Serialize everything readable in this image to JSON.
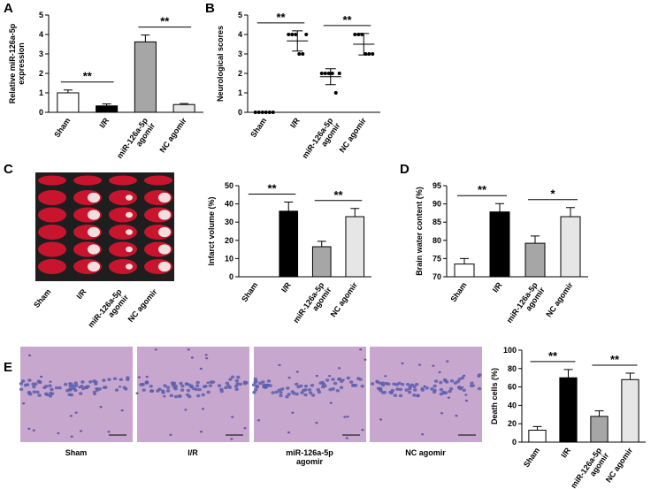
{
  "panels": [
    "A",
    "B",
    "C",
    "D",
    "E"
  ],
  "chart_data": [
    {
      "type": "bar",
      "ylabel": [
        "Relative miR-126a-5p",
        "expression"
      ],
      "categories": [
        "Sham",
        "I/R",
        [
          "miR-126a-5p",
          "agomir"
        ],
        "NC agomir"
      ],
      "values": [
        1.0,
        0.33,
        3.62,
        0.4
      ],
      "errors": [
        0.15,
        0.1,
        0.35,
        0.05
      ],
      "colors": [
        "#ffffff",
        "#000000",
        "#a6a6a6",
        "#e6e6e6"
      ],
      "ylim": [
        0,
        5
      ],
      "yticks": [
        0,
        1,
        2,
        3,
        4,
        5
      ],
      "annotations": [
        "**",
        "**"
      ]
    },
    {
      "type": "dotplot",
      "ylabel": [
        "Neurological scores"
      ],
      "categories": [
        "Sham",
        "I/R",
        [
          "miR-126a-5p",
          "agomir"
        ],
        "NC agomir"
      ],
      "points": [
        [
          0,
          0,
          0,
          0,
          0,
          0
        ],
        [
          4,
          4,
          4,
          3,
          3,
          4
        ],
        [
          2,
          2,
          2,
          2,
          1,
          2
        ],
        [
          4,
          4,
          4,
          3,
          3,
          3
        ]
      ],
      "means": [
        0,
        3.67,
        1.83,
        3.5
      ],
      "errors": [
        0,
        0.52,
        0.41,
        0.55
      ],
      "ylim": [
        0,
        5
      ],
      "yticks": [
        0,
        1,
        2,
        3,
        4,
        5
      ],
      "annotations": [
        "**",
        "**"
      ]
    },
    {
      "type": "bar",
      "ylabel": [
        "Infarct volume (%)"
      ],
      "categories": [
        "Sham",
        "I/R",
        [
          "miR-126a-5p",
          "agomir"
        ],
        "NC agomir"
      ],
      "values": [
        0,
        36,
        16.5,
        33
      ],
      "errors": [
        0,
        5,
        3,
        4.5
      ],
      "colors": [
        "#ffffff",
        "#000000",
        "#a6a6a6",
        "#e6e6e6"
      ],
      "ylim": [
        0,
        50
      ],
      "yticks": [
        0,
        10,
        20,
        30,
        40,
        50
      ],
      "annotations": [
        "**",
        "**"
      ]
    },
    {
      "type": "bar",
      "ylabel": [
        "Brain water content (%)"
      ],
      "categories": [
        "Sham",
        "I/R",
        [
          "miR-126a-5p",
          "agomir"
        ],
        "NC agomir"
      ],
      "values": [
        73.5,
        87.8,
        79.2,
        86.5
      ],
      "errors": [
        1.5,
        2.3,
        2,
        2.5
      ],
      "colors": [
        "#ffffff",
        "#000000",
        "#a6a6a6",
        "#e6e6e6"
      ],
      "ylim": [
        70,
        95
      ],
      "yticks": [
        70,
        75,
        80,
        85,
        90,
        95
      ],
      "annotations": [
        "**",
        "*"
      ]
    },
    {
      "type": "bar",
      "ylabel": [
        "Death cells (%)"
      ],
      "categories": [
        "Sham",
        "I/R",
        [
          "miR-126a-5p",
          "agomir"
        ],
        "NC agomir"
      ],
      "values": [
        13,
        70,
        28,
        68
      ],
      "errors": [
        4,
        9,
        6,
        7
      ],
      "colors": [
        "#ffffff",
        "#000000",
        "#a6a6a6",
        "#e6e6e6"
      ],
      "ylim": [
        0,
        100
      ],
      "yticks": [
        0,
        20,
        40,
        60,
        80,
        100
      ],
      "annotations": [
        "**",
        "**"
      ]
    }
  ],
  "photos": {
    "C": [
      "Sham",
      "I/R",
      [
        "miR-126a-5p",
        "agomir"
      ],
      "NC agomir"
    ],
    "E": [
      "Sham",
      "I/R",
      [
        "miR-126a-5p",
        "agomir"
      ],
      "NC agomir"
    ]
  }
}
